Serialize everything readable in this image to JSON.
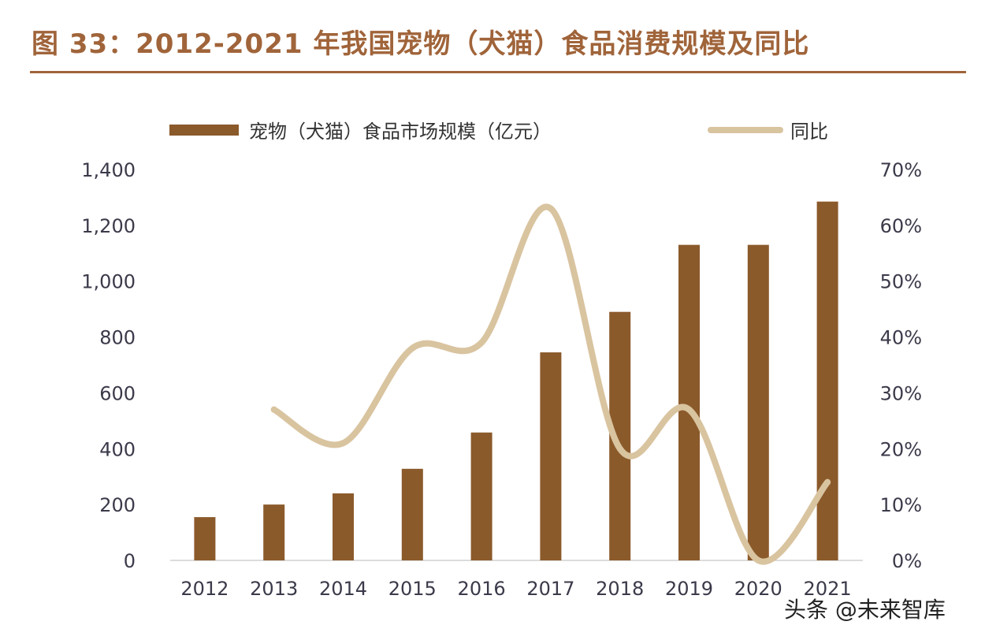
{
  "title": "图 33：2012-2021 年我国宠物（犬猫）食品消费规模及同比",
  "watermark": "头条 @未来智库",
  "colors": {
    "title": "#a0643a",
    "bar": "#8b5a2b",
    "line": "#d9c4a0",
    "text": "#3a3a4a"
  },
  "chart_data": {
    "type": "bar",
    "categories": [
      "2012",
      "2013",
      "2014",
      "2015",
      "2016",
      "2017",
      "2018",
      "2019",
      "2020",
      "2021"
    ],
    "series": [
      {
        "name": "宠物（犬猫）食品市场规模（亿元）",
        "type": "bar",
        "axis": "left",
        "values": [
          155,
          200,
          240,
          328,
          458,
          745,
          890,
          1130,
          1130,
          1285
        ]
      },
      {
        "name": "同比",
        "type": "line",
        "axis": "right",
        "values": [
          null,
          27,
          21,
          38,
          39,
          63,
          20,
          27,
          0,
          14
        ]
      }
    ],
    "y_left": {
      "ylim": [
        0,
        1400
      ],
      "ticks": [
        "0",
        "200",
        "400",
        "600",
        "800",
        "1,000",
        "1,200",
        "1,400"
      ]
    },
    "y_right": {
      "ylim": [
        0,
        70
      ],
      "ticks": [
        "0%",
        "10%",
        "20%",
        "30%",
        "40%",
        "50%",
        "60%",
        "70%"
      ]
    },
    "legend_position": "top",
    "grid": false
  }
}
